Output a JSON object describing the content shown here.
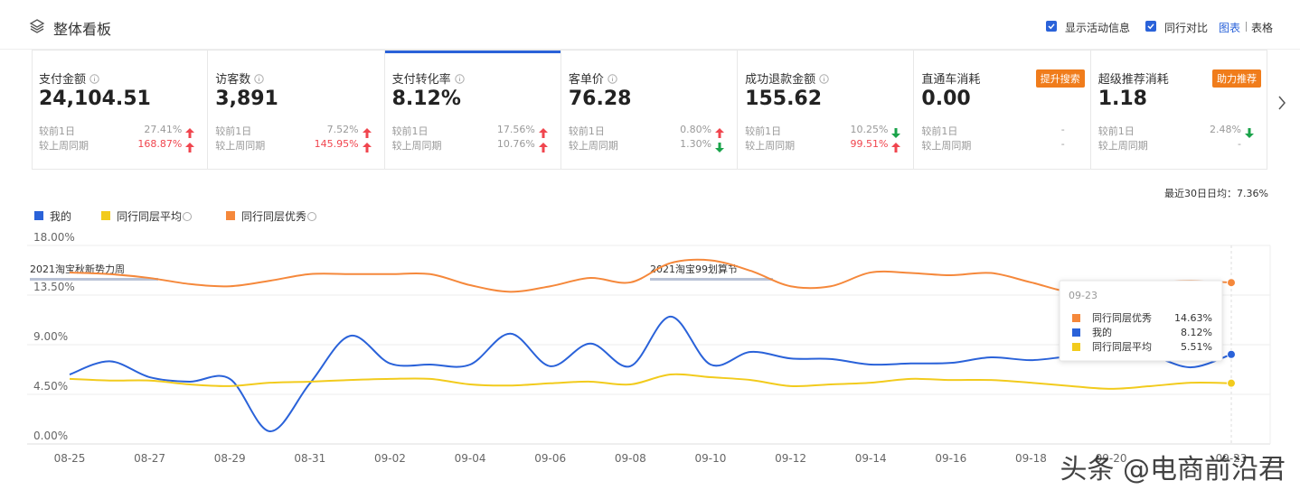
{
  "header": {
    "title": "整体看板",
    "options": [
      {
        "label": "显示活动信息",
        "checked": true
      },
      {
        "label": "同行对比",
        "checked": true
      }
    ],
    "views": [
      {
        "label": "图表",
        "selected": true
      },
      {
        "label": "表格",
        "selected": false
      }
    ]
  },
  "metrics": [
    {
      "title": "支付金额",
      "value": "24,104.51",
      "active": false,
      "compare": [
        {
          "label": "较前1日",
          "value": "27.41%",
          "trend": "up",
          "emphasis": false
        },
        {
          "label": "较上周同期",
          "value": "168.87%",
          "trend": "up",
          "emphasis": true
        }
      ]
    },
    {
      "title": "访客数",
      "value": "3,891",
      "active": false,
      "compare": [
        {
          "label": "较前1日",
          "value": "7.52%",
          "trend": "up",
          "emphasis": false
        },
        {
          "label": "较上周同期",
          "value": "145.95%",
          "trend": "up",
          "emphasis": true
        }
      ]
    },
    {
      "title": "支付转化率",
      "value": "8.12%",
      "active": true,
      "compare": [
        {
          "label": "较前1日",
          "value": "17.56%",
          "trend": "up",
          "emphasis": false
        },
        {
          "label": "较上周同期",
          "value": "10.76%",
          "trend": "up",
          "emphasis": false
        }
      ]
    },
    {
      "title": "客单价",
      "value": "76.28",
      "active": false,
      "compare": [
        {
          "label": "较前1日",
          "value": "0.80%",
          "trend": "up",
          "emphasis": false
        },
        {
          "label": "较上周同期",
          "value": "1.30%",
          "trend": "down",
          "emphasis": false
        }
      ]
    },
    {
      "title": "成功退款金额",
      "value": "155.62",
      "active": false,
      "compare": [
        {
          "label": "较前1日",
          "value": "10.25%",
          "trend": "down",
          "emphasis": false
        },
        {
          "label": "较上周同期",
          "value": "99.51%",
          "trend": "up",
          "emphasis": true
        }
      ]
    },
    {
      "title": "直通车消耗",
      "badge": "提升搜索",
      "value": "0.00",
      "active": false,
      "compare": [
        {
          "label": "较前1日",
          "value": "-",
          "emphasis": false
        },
        {
          "label": "较上周同期",
          "value": "-",
          "emphasis": false
        }
      ]
    },
    {
      "title": "超级推荐消耗",
      "badge": "助力推荐",
      "value": "1.18",
      "active": false,
      "compare": [
        {
          "label": "较前1日",
          "value": "2.48%",
          "trend": "down",
          "emphasis": false
        },
        {
          "label": "较上周同期",
          "value": "-",
          "emphasis": false
        }
      ]
    }
  ],
  "chart_data": {
    "type": "line",
    "subtitle": "最近30日日均：7.36%",
    "categories": [
      "08-25",
      null,
      "08-27",
      null,
      "08-29",
      null,
      "08-31",
      null,
      "09-02",
      null,
      "09-04",
      null,
      "09-06",
      null,
      "09-08",
      null,
      "09-10",
      null,
      "09-12",
      null,
      "09-14",
      null,
      "09-16",
      null,
      "09-18",
      null,
      "09-20",
      null,
      null,
      "09-23"
    ],
    "series": [
      {
        "name": "我的",
        "color": "#2a62d9",
        "values": [
          6.3,
          7.5,
          6.05,
          5.65,
          5.9,
          1.15,
          5.5,
          9.8,
          7.3,
          7.2,
          7.2,
          10.0,
          7.05,
          9.1,
          7.05,
          11.55,
          7.2,
          8.35,
          7.75,
          7.7,
          7.2,
          7.3,
          7.35,
          7.85,
          7.6,
          7.95,
          8.1,
          7.95,
          6.95,
          8.12
        ]
      },
      {
        "name": "同行同层平均",
        "color": "#f2cb1d",
        "values": [
          5.9,
          5.75,
          5.75,
          5.4,
          5.25,
          5.55,
          5.65,
          5.8,
          5.9,
          5.9,
          5.4,
          5.3,
          5.5,
          5.65,
          5.4,
          6.3,
          6.05,
          5.8,
          5.25,
          5.4,
          5.55,
          5.9,
          5.8,
          5.8,
          5.55,
          5.25,
          5.0,
          5.25,
          5.55,
          5.51
        ]
      },
      {
        "name": "同行同层优秀",
        "color": "#f5883b",
        "values": [
          15.55,
          15.4,
          15.05,
          14.5,
          14.3,
          14.8,
          15.4,
          15.4,
          15.4,
          15.4,
          14.4,
          13.8,
          14.3,
          15.05,
          14.65,
          16.4,
          16.65,
          15.7,
          14.3,
          14.3,
          15.55,
          15.5,
          15.3,
          15.5,
          14.65,
          13.8,
          14.2,
          14.65,
          14.8,
          14.63
        ]
      }
    ],
    "ylim": [
      0,
      18
    ],
    "yticks": [
      {
        "value": 0,
        "label": "0.00%"
      },
      {
        "value": 4.5,
        "label": "4.50%"
      },
      {
        "value": 9,
        "label": "9.00%"
      },
      {
        "value": 13.5,
        "label": "13.50%"
      },
      {
        "value": 18,
        "label": "18.00%"
      }
    ],
    "grid": true,
    "annotations": [
      "2021淘宝秋新势力周",
      "2021淘宝99划算节"
    ],
    "tooltip": {
      "title": "09-23",
      "rows": [
        {
          "name": "同行同层优秀",
          "color": "#f5883b",
          "value": 14.63,
          "value_label": "14.63%"
        },
        {
          "name": "我的",
          "color": "#2a62d9",
          "value": 8.12,
          "value_label": "8.12%"
        },
        {
          "name": "同行同层平均",
          "color": "#f2cb1d",
          "value": 5.51,
          "value_label": "5.51%"
        }
      ]
    }
  },
  "watermark": "头条 @电商前沿君"
}
